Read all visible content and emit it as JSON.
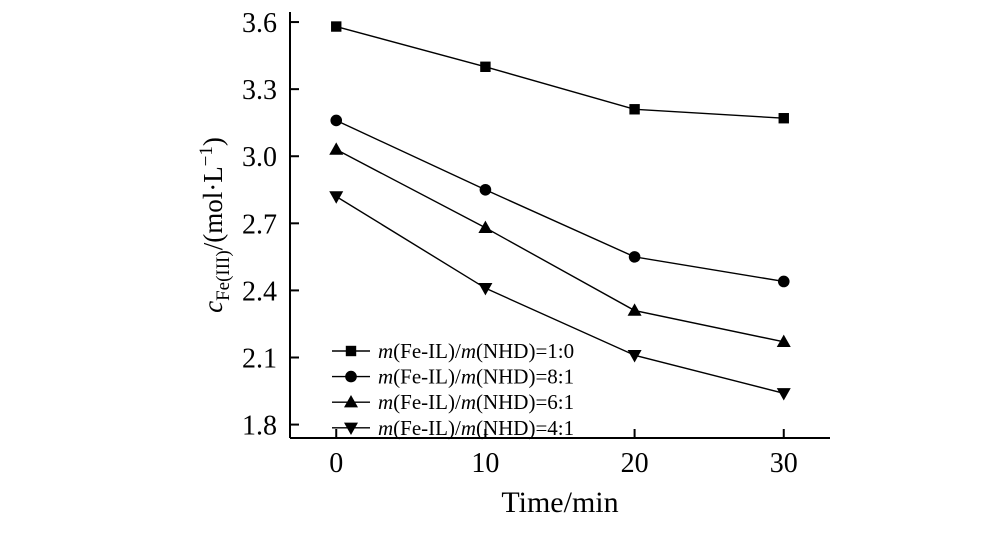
{
  "figure": {
    "background": "#ffffff"
  },
  "chart_data": {
    "type": "line",
    "title": "",
    "xlabel": "Time/min",
    "ylabel": "c_Fe(III)/(mol·L−1)",
    "ylabel_parts": [
      {
        "text": "c",
        "style": "italic"
      },
      {
        "text": "Fe(III)",
        "style": "sub"
      },
      {
        "text": "/(mol·L",
        "style": "normal"
      },
      {
        "text": "−1",
        "style": "super"
      },
      {
        "text": ")",
        "style": "normal"
      }
    ],
    "x": [
      0,
      10,
      20,
      30
    ],
    "x_ticks": [
      "0",
      "10",
      "20",
      "30"
    ],
    "y_ticks": [
      "1.8",
      "2.1",
      "2.4",
      "2.7",
      "3.0",
      "3.3",
      "3.6"
    ],
    "xlim": [
      -3.1,
      33.1
    ],
    "ylim": [
      1.74,
      3.645
    ],
    "grid": false,
    "legend_position": "inside-lower-left",
    "color": "#000000",
    "series": [
      {
        "name": "m(Fe-IL)/m(NHD)=1:0",
        "marker": "square",
        "values": [
          3.58,
          3.4,
          3.21,
          3.17
        ],
        "name_parts": [
          {
            "text": "m",
            "style": "italic"
          },
          {
            "text": "(Fe-IL)/",
            "style": "normal"
          },
          {
            "text": "m",
            "style": "italic"
          },
          {
            "text": "(NHD)=1:0",
            "style": "normal"
          }
        ]
      },
      {
        "name": "m(Fe-IL)/m(NHD)=8:1",
        "marker": "circle",
        "values": [
          3.16,
          2.85,
          2.55,
          2.44
        ],
        "name_parts": [
          {
            "text": "m",
            "style": "italic"
          },
          {
            "text": "(Fe-IL)/",
            "style": "normal"
          },
          {
            "text": "m",
            "style": "italic"
          },
          {
            "text": "(NHD)=8:1",
            "style": "normal"
          }
        ]
      },
      {
        "name": "m(Fe-IL)/m(NHD)=6:1",
        "marker": "triangle-up",
        "values": [
          3.03,
          2.68,
          2.31,
          2.17
        ],
        "name_parts": [
          {
            "text": "m",
            "style": "italic"
          },
          {
            "text": "(Fe-IL)/",
            "style": "normal"
          },
          {
            "text": "m",
            "style": "italic"
          },
          {
            "text": "(NHD)=6:1",
            "style": "normal"
          }
        ]
      },
      {
        "name": "m(Fe-IL)/m(NHD)=4:1",
        "marker": "triangle-down",
        "values": [
          2.82,
          2.41,
          2.11,
          1.94
        ],
        "name_parts": [
          {
            "text": "m",
            "style": "italic"
          },
          {
            "text": "(Fe-IL)/",
            "style": "normal"
          },
          {
            "text": "m",
            "style": "italic"
          },
          {
            "text": "(NHD)=4:1",
            "style": "normal"
          }
        ]
      }
    ]
  }
}
